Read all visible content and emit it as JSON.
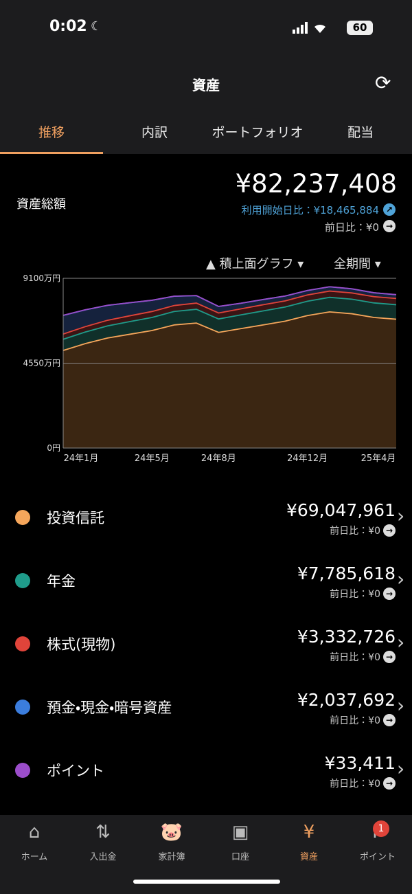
{
  "status_bar": {
    "time": "0:02",
    "battery": "60"
  },
  "header": {
    "title": "資産"
  },
  "tabs": [
    "推移",
    "内訳",
    "ポートフォリオ",
    "配当"
  ],
  "summary": {
    "label": "資産総額",
    "total": "¥82,237,408",
    "since_start": "利用開始日比：¥18,465,884",
    "day_change": "前日比：¥0"
  },
  "chart_controls": {
    "graph_type": "積上面グラフ",
    "period": "全期間"
  },
  "chart_data": {
    "type": "stacked_area",
    "categories": [
      "24年1月",
      null,
      null,
      null,
      "24年5月",
      null,
      null,
      "24年8月",
      null,
      null,
      null,
      "24年12月",
      null,
      null,
      null,
      "25年4月"
    ],
    "series": [
      {
        "name": "投資信託",
        "color": "#f5a65b",
        "fill": "#3b2612",
        "values": [
          5230,
          5600,
          5900,
          6100,
          6300,
          6600,
          6700,
          6200,
          6400,
          6600,
          6800,
          7100,
          7300,
          7200,
          7000,
          6905
        ]
      },
      {
        "name": "年金",
        "color": "#1f9c8b",
        "fill": "#10302a",
        "values": [
          600,
          620,
          650,
          680,
          700,
          720,
          740,
          720,
          740,
          750,
          760,
          770,
          780,
          780,
          780,
          779
        ]
      },
      {
        "name": "株式(現物)",
        "color": "#e0443a",
        "fill": "#3a1414",
        "values": [
          280,
          290,
          300,
          310,
          320,
          320,
          330,
          320,
          320,
          330,
          330,
          335,
          335,
          335,
          334,
          333
        ]
      },
      {
        "name": "預金・現金・暗号資産",
        "color": "#3b7ddd",
        "fill": "#15223d",
        "values": [
          1000,
          900,
          800,
          700,
          600,
          500,
          400,
          350,
          300,
          280,
          260,
          240,
          230,
          220,
          210,
          204
        ]
      },
      {
        "name": "ポイント",
        "color": "#9b4dca",
        "fill": "#2a1638",
        "values": [
          3,
          3,
          3,
          3,
          3,
          3,
          3,
          3,
          3,
          3,
          3,
          3,
          3,
          3,
          3,
          3
        ]
      }
    ],
    "ylim": [
      0,
      9100
    ],
    "yticks": [
      {
        "value": 0,
        "label": "0円"
      },
      {
        "value": 4550,
        "label": "4550万円"
      },
      {
        "value": 9100,
        "label": "9100万円"
      }
    ],
    "grid": true
  },
  "assets": [
    {
      "name": "投資信託",
      "color": "#f5a65b",
      "amount": "¥69,047,961",
      "day_change": "前日比：¥0"
    },
    {
      "name": "年金",
      "color": "#1f9c8b",
      "amount": "¥7,785,618",
      "day_change": "前日比：¥0"
    },
    {
      "name": "株式(現物)",
      "color": "#e0443a",
      "amount": "¥3,332,726",
      "day_change": "前日比：¥0"
    },
    {
      "name": "預金・現金・暗号資産",
      "color": "#3b7ddd",
      "amount": "¥2,037,692",
      "day_change": "前日比：¥0"
    },
    {
      "name": "ポイント",
      "color": "#9b4dca",
      "amount": "¥33,411",
      "day_change": "前日比：¥0"
    }
  ],
  "nav": {
    "items": [
      "ホーム",
      "入出金",
      "家計簿",
      "口座",
      "資産",
      "ポイント"
    ],
    "active": 4,
    "badge": "1"
  }
}
